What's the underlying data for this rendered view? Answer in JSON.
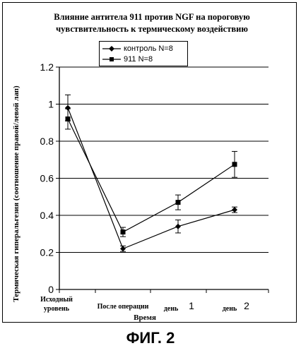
{
  "title_line1": "Влияние антитела 911 против NGF на пороговую",
  "title_line2": "чувствительность к термическому воздействию",
  "figure_caption": "ФИГ. 2",
  "chart_data": {
    "type": "line",
    "title": "Влияние антитела 911 против NGF на пороговую чувствительность к термическому воздействию",
    "xlabel": "Время",
    "ylabel": "Термическая гиперальгезия (соотношение правой/левой лап)",
    "ylim": [
      0,
      1.2
    ],
    "y_ticks": [
      "0",
      "0.2",
      "0.4",
      "0.6",
      "0.8",
      "1",
      "1.2"
    ],
    "grid": "horizontal",
    "legend_position": "top-center",
    "categories": [
      {
        "line1": "Исходный",
        "line2": "уровень"
      },
      {
        "line1": "После операции",
        "line2": ""
      },
      {
        "line1": "день",
        "num": "1"
      },
      {
        "line1": "день",
        "num": "2"
      }
    ],
    "series": [
      {
        "name": "контроль",
        "legend_label": "контроль N=8",
        "marker": "diamond",
        "values": [
          0.98,
          0.22,
          0.34,
          0.43
        ],
        "errors": [
          0.07,
          0.015,
          0.035,
          0.015
        ]
      },
      {
        "name": "911",
        "legend_label": "911 N=8",
        "marker": "square",
        "values": [
          0.92,
          0.31,
          0.47,
          0.675
        ],
        "errors": [
          0.055,
          0.025,
          0.04,
          0.07
        ]
      }
    ]
  }
}
